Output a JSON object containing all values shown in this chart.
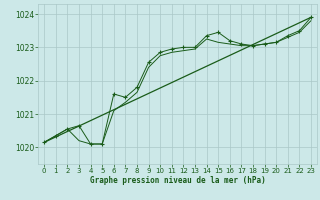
{
  "xlabel": "Graphe pression niveau de la mer (hPa)",
  "bg_color": "#cce8e8",
  "grid_color": "#aac8c8",
  "line_color": "#1a5c1a",
  "xlim": [
    -0.5,
    23.5
  ],
  "ylim": [
    1019.5,
    1024.3
  ],
  "yticks": [
    1020,
    1021,
    1022,
    1023,
    1024
  ],
  "xticks": [
    0,
    1,
    2,
    3,
    4,
    5,
    6,
    7,
    8,
    9,
    10,
    11,
    12,
    13,
    14,
    15,
    16,
    17,
    18,
    19,
    20,
    21,
    22,
    23
  ],
  "main_x": [
    0,
    1,
    2,
    3,
    4,
    5,
    6,
    7,
    8,
    9,
    10,
    11,
    12,
    13,
    14,
    15,
    16,
    17,
    18,
    19,
    20,
    21,
    22,
    23
  ],
  "main_y": [
    1020.15,
    1020.35,
    1020.55,
    1020.65,
    1020.1,
    1020.1,
    1021.6,
    1021.5,
    1021.8,
    1022.55,
    1022.85,
    1022.95,
    1023.0,
    1023.0,
    1023.35,
    1023.45,
    1023.2,
    1023.1,
    1023.05,
    1023.1,
    1023.15,
    1023.35,
    1023.5,
    1023.9
  ],
  "line2_x": [
    0,
    1,
    2,
    3,
    4,
    5,
    6,
    7,
    8,
    9,
    10,
    11,
    12,
    13,
    14,
    15,
    16,
    17,
    18,
    19,
    20,
    21,
    22,
    23
  ],
  "line2_y": [
    1020.15,
    1020.35,
    1020.55,
    1020.2,
    1020.1,
    1020.1,
    1021.1,
    1021.35,
    1021.65,
    1022.4,
    1022.75,
    1022.85,
    1022.9,
    1022.95,
    1023.25,
    1023.15,
    1023.1,
    1023.05,
    1023.05,
    1023.1,
    1023.15,
    1023.3,
    1023.45,
    1023.8
  ],
  "line3_x": [
    0,
    23
  ],
  "line3_y": [
    1020.15,
    1023.9
  ]
}
